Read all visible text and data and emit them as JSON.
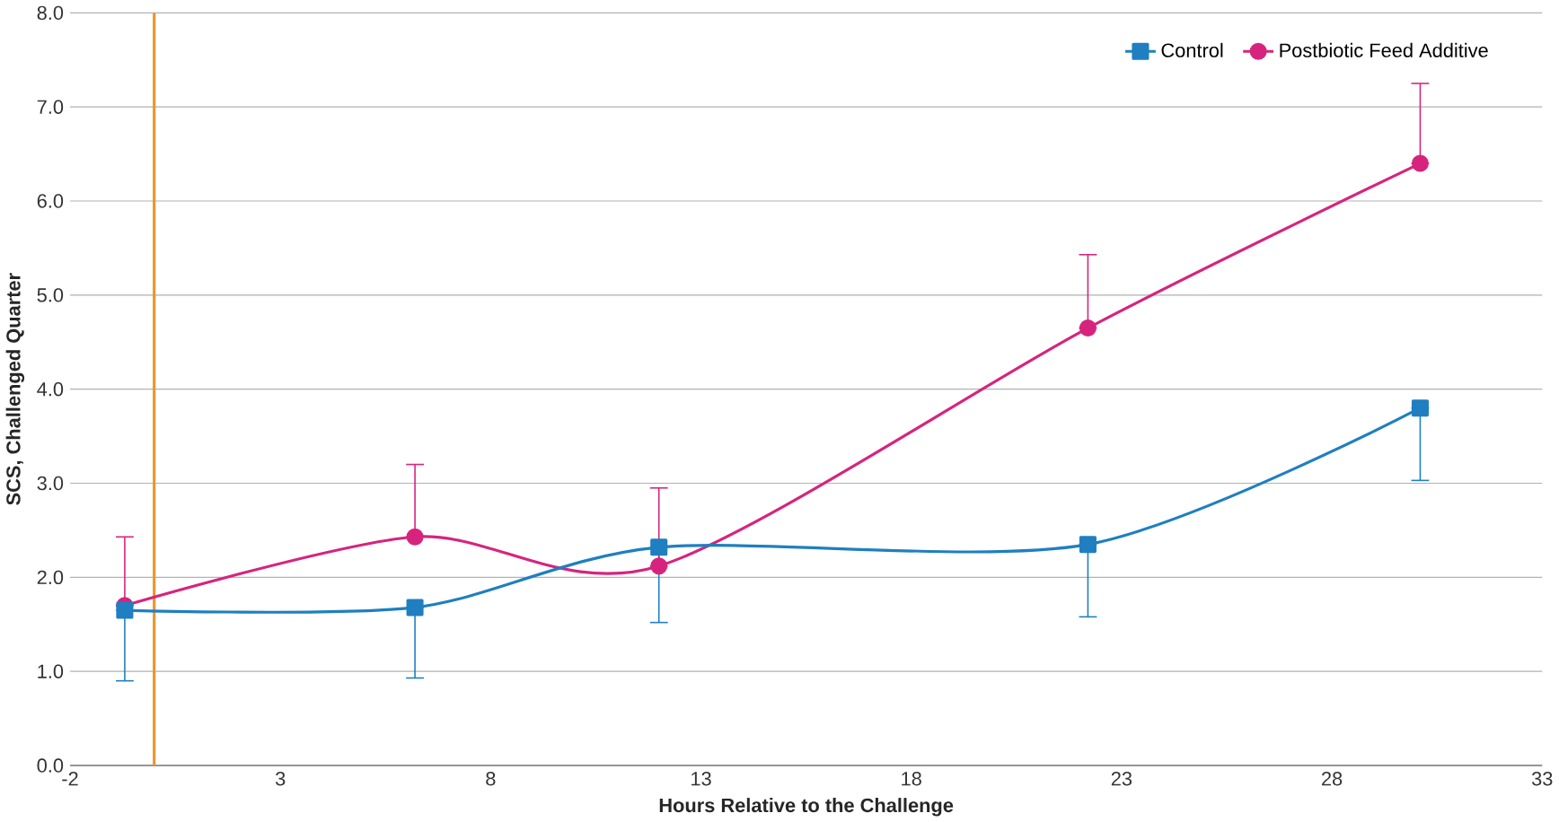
{
  "chart_data": {
    "type": "line",
    "xlabel": "Hours Relative to the Challenge",
    "ylabel": "SCS, Challenged Quarter",
    "xlim": [
      -2,
      33
    ],
    "xticks": [
      -2,
      3,
      8,
      13,
      18,
      23,
      28,
      33
    ],
    "ylim": [
      0,
      8
    ],
    "yticks": [
      {
        "value": 0,
        "label": "0.0"
      },
      {
        "value": 1,
        "label": "1.0"
      },
      {
        "value": 2,
        "label": "2.0"
      },
      {
        "value": 3,
        "label": "3.0"
      },
      {
        "value": 4,
        "label": "4.0"
      },
      {
        "value": 5,
        "label": "5.0"
      },
      {
        "value": 6,
        "label": "6.0"
      },
      {
        "value": 7,
        "label": "7.0"
      },
      {
        "value": 8,
        "label": "8.0"
      }
    ],
    "grid": "y",
    "legend": "top right",
    "ref_lines": [
      {
        "axis": "x",
        "value": 0,
        "color": "#e8962e"
      }
    ],
    "series": [
      {
        "name": "Control",
        "color": "#1f7fc0",
        "marker": "square",
        "x": [
          -0.7,
          6.2,
          12,
          22.2,
          30.1
        ],
        "values": [
          1.65,
          1.68,
          2.32,
          2.35,
          3.8
        ],
        "errors": [
          [
            0.9,
            1.65
          ],
          [
            0.93,
            1.68
          ],
          [
            1.52,
            2.32
          ],
          [
            1.58,
            2.35
          ],
          [
            3.03,
            3.8
          ]
        ]
      },
      {
        "name": "Postbiotic Feed Additive",
        "color": "#d6247e",
        "marker": "circle",
        "x": [
          -0.7,
          6.2,
          12,
          22.2,
          30.1
        ],
        "values": [
          1.7,
          2.43,
          2.12,
          4.65,
          6.4
        ],
        "errors": [
          [
            1.7,
            2.43
          ],
          [
            2.43,
            3.2
          ],
          [
            2.12,
            2.95
          ],
          [
            4.65,
            5.43
          ],
          [
            6.4,
            7.25
          ]
        ]
      }
    ]
  }
}
